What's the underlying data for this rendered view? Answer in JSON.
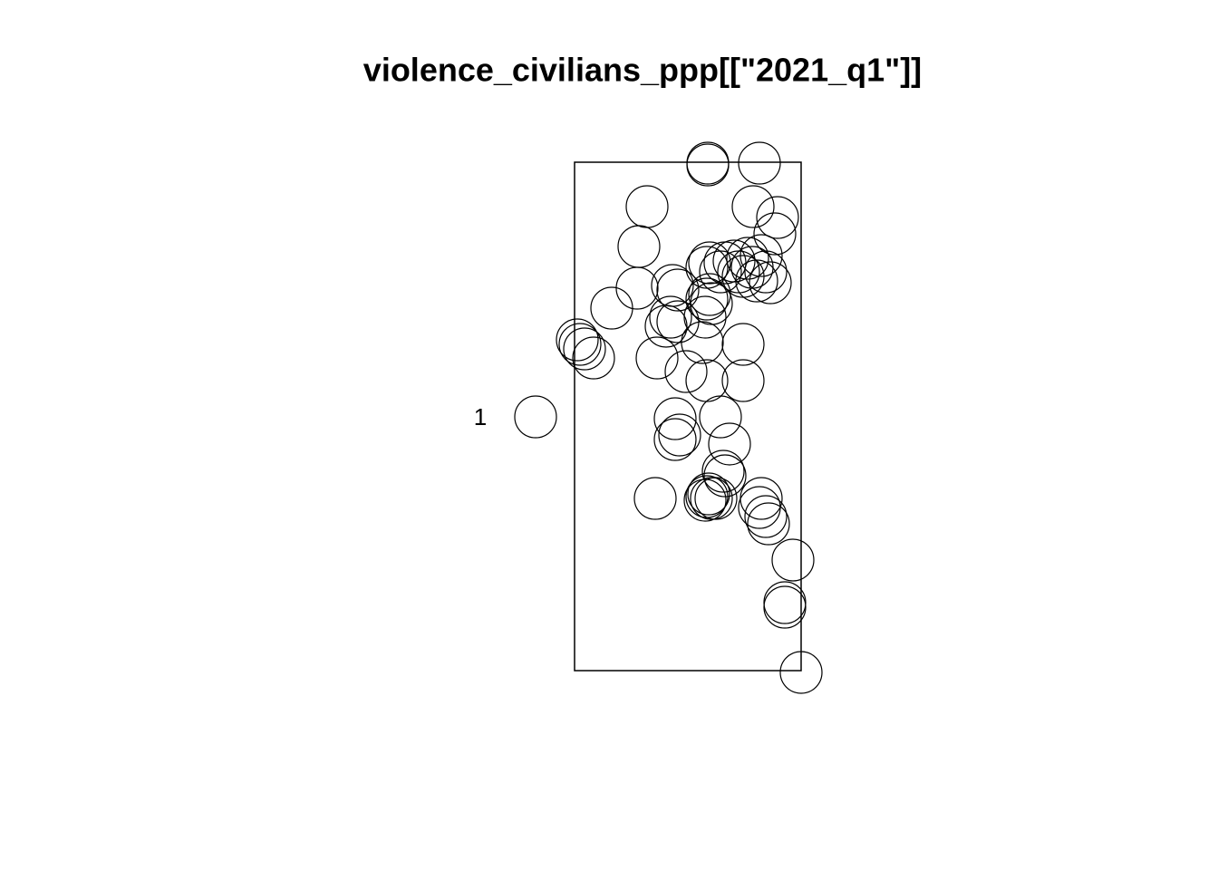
{
  "chart_data": {
    "type": "scatter",
    "title": "violence_civilians_ppp[[\"2021_q1\"]]",
    "xlim": [
      0,
      250
    ],
    "ylim": [
      0,
      561
    ],
    "series": [
      {
        "name": "1",
        "color": "#000000",
        "x": [
          147,
          147,
          204,
          80,
          197,
          224,
          221,
          71,
          149,
          166,
          176,
          191,
          206,
          196,
          211,
          181,
          216,
          201,
          186,
          161,
          146,
          69,
          108,
          114,
          149,
          151,
          146,
          41,
          106,
          101,
          114,
          144,
          3,
          6,
          11,
          21,
          141,
          186,
          91,
          123,
          146,
          186,
          161,
          111,
          116,
          111,
          171,
          164,
          166,
          148,
          151,
          146,
          144,
          156,
          89,
          206,
          204,
          211,
          214,
          241,
          232,
          232,
          250
        ],
        "y": [
          560,
          558,
          560,
          512,
          512,
          500,
          482,
          468,
          450,
          450,
          452,
          455,
          458,
          445,
          440,
          440,
          428,
          430,
          435,
          440,
          445,
          422,
          425,
          420,
          415,
          405,
          410,
          400,
          390,
          380,
          385,
          390,
          365,
          360,
          355,
          345,
          362,
          360,
          345,
          330,
          320,
          320,
          280,
          278,
          260,
          255,
          250,
          220,
          215,
          195,
          190,
          192,
          188,
          190,
          190,
          190,
          180,
          170,
          162,
          122,
          75,
          70,
          -2
        ]
      }
    ]
  }
}
